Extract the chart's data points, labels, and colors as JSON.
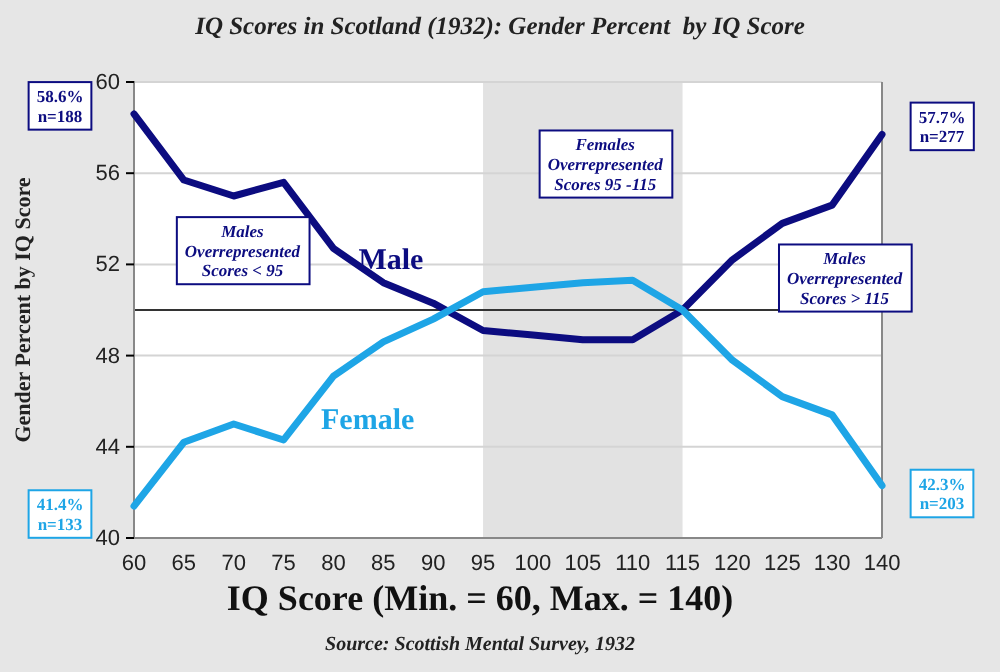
{
  "chart_data": {
    "type": "line",
    "title": "IQ Scores in Scotland (1932): Gender Percent  by IQ Score",
    "xlabel": "IQ Score (Min. = 60, Max. = 140)",
    "ylabel": "Gender Percent by IQ Score",
    "categories": [
      "60",
      "65",
      "70",
      "75",
      "80",
      "85",
      "90",
      "95",
      "100",
      "105",
      "110",
      "115",
      "120",
      "125",
      "130",
      "140"
    ],
    "series": [
      {
        "name": "Male",
        "color": "#0c0c80",
        "values": [
          58.6,
          55.7,
          55.0,
          55.6,
          52.7,
          51.2,
          50.3,
          49.1,
          48.9,
          48.7,
          48.7,
          50.0,
          52.2,
          53.8,
          54.6,
          57.7
        ]
      },
      {
        "name": "Female",
        "color": "#1ea5e6",
        "values": [
          41.4,
          44.2,
          45.0,
          44.3,
          47.1,
          48.6,
          49.6,
          50.8,
          51.0,
          51.2,
          51.3,
          50.0,
          47.8,
          46.2,
          45.4,
          42.3
        ]
      }
    ],
    "ylim": [
      40,
      60
    ],
    "yticks": [
      40,
      44,
      48,
      52,
      56,
      60
    ],
    "grid": "y",
    "bands": [
      {
        "axis": "x",
        "from": "95",
        "to": "115",
        "color": "#e2e2e2"
      }
    ],
    "ref_lines": [
      {
        "axis": "y",
        "value": 50,
        "color": "#333333"
      }
    ],
    "annotations": [
      {
        "text": "58.6%\nn=188",
        "x": "60",
        "y": 58.6
      },
      {
        "text": "41.4%\nn=133",
        "x": "60",
        "y": 41.4
      },
      {
        "text": "57.7%\nn=277",
        "x": "140",
        "y": 57.7
      },
      {
        "text": "42.3%\nn=203",
        "x": "140",
        "y": 42.3
      },
      "Males\nOverrepresented\nScores < 95",
      "Females\nOverrepresented\nScores 95 -115",
      "Males\nOverrepresented\nScores > 115",
      "Source: Scottish Mental Survey, 1932"
    ]
  }
}
